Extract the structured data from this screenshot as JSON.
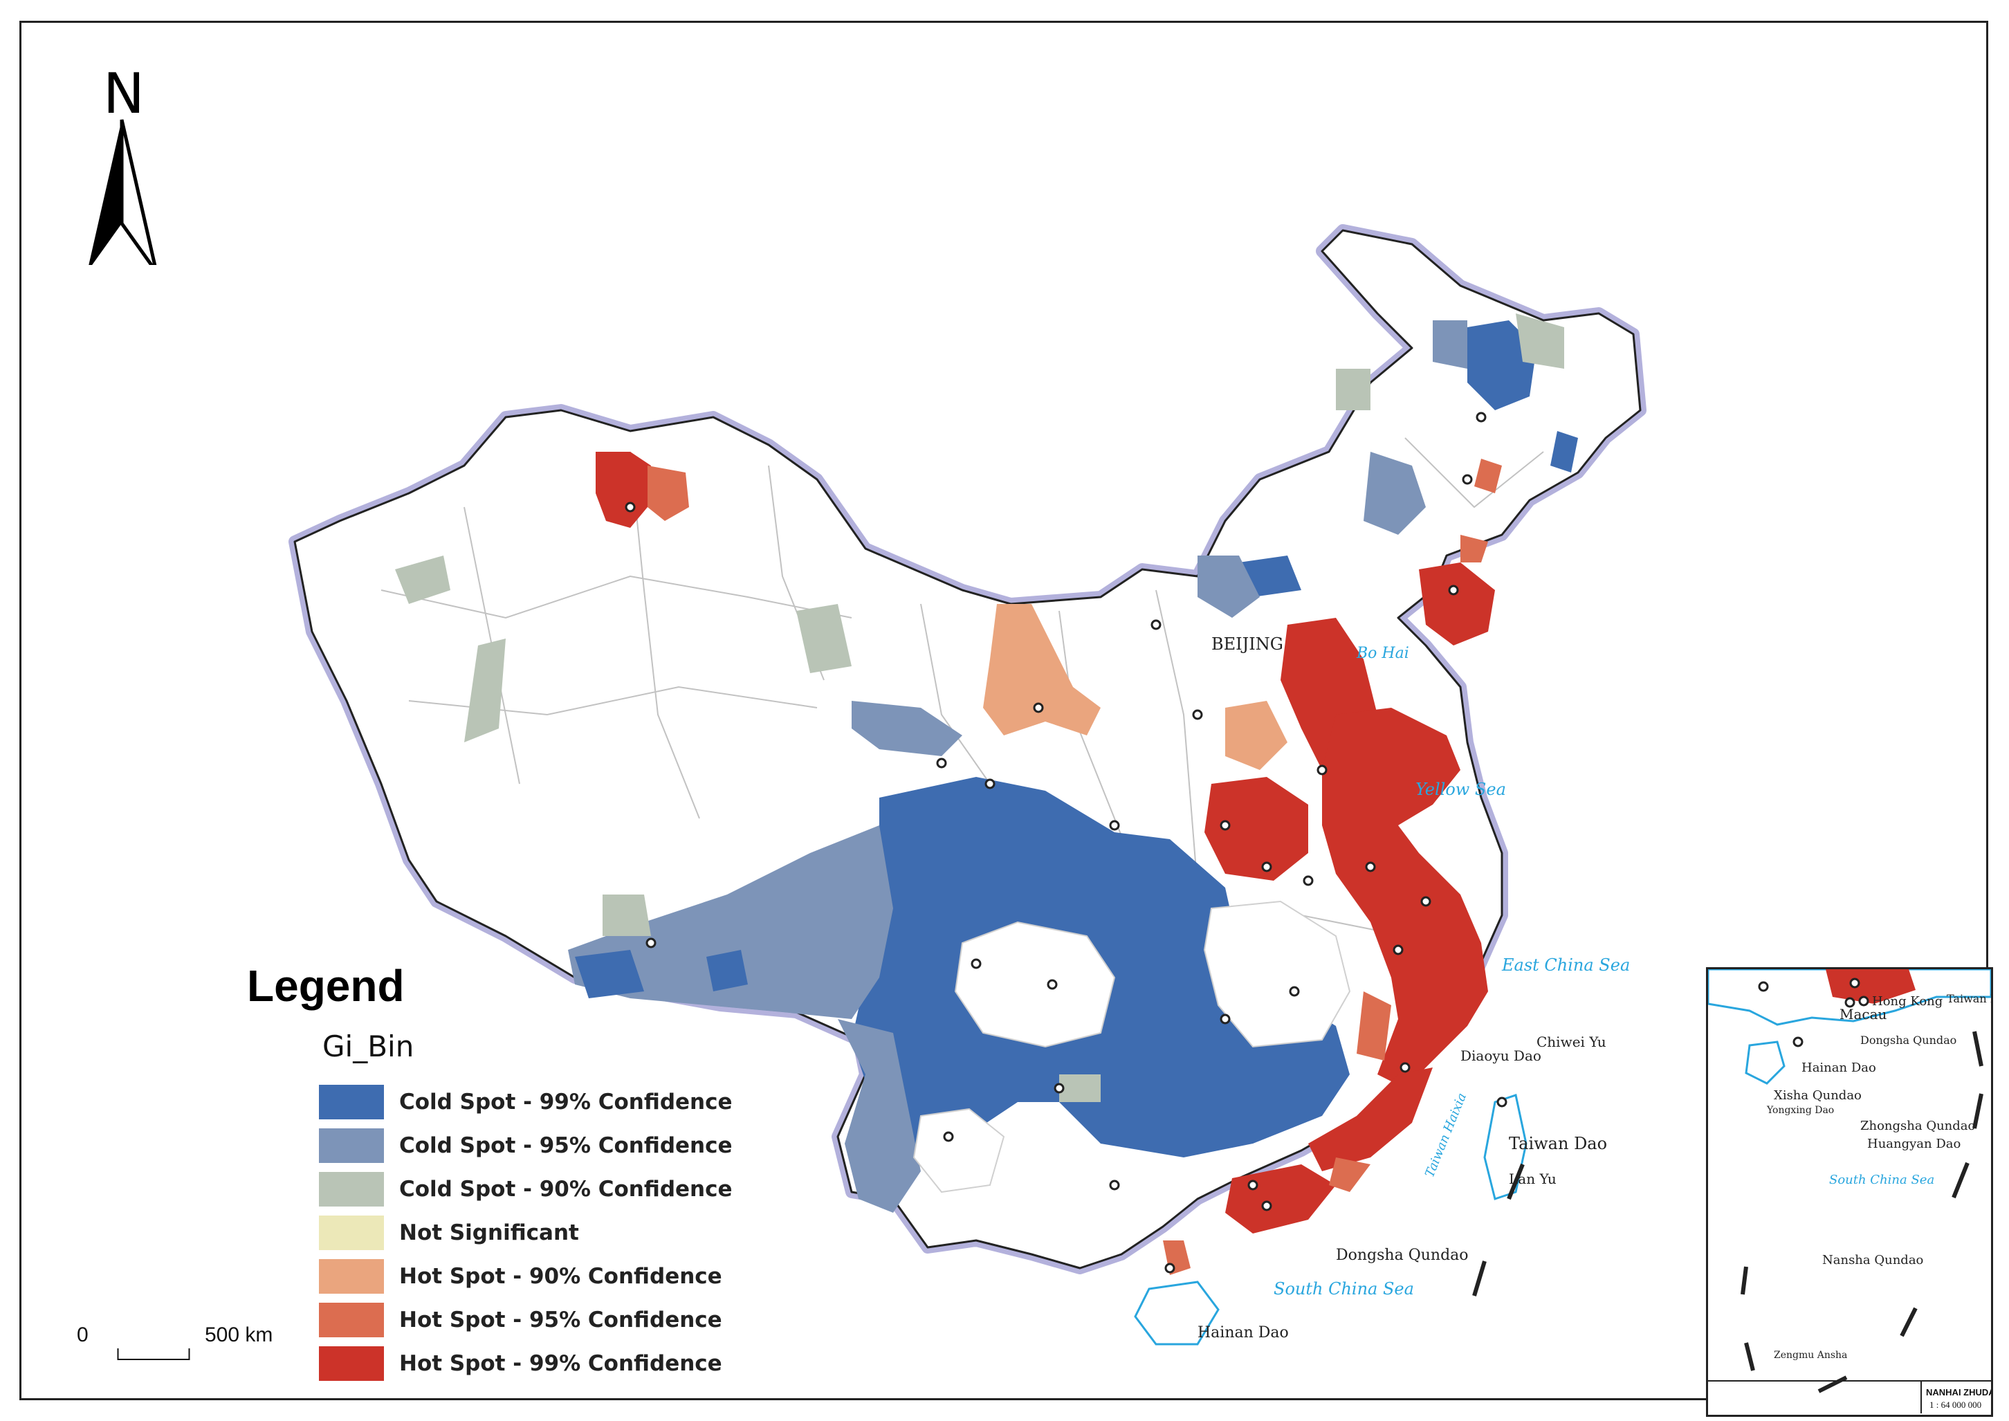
{
  "map": {
    "north_label": "N",
    "legend": {
      "title": "Legend",
      "field": "Gi_Bin",
      "items": [
        {
          "label": "Cold Spot - 99% Confidence",
          "color": "#3e6cb0"
        },
        {
          "label": "Cold Spot - 95% Confidence",
          "color": "#7d94b8"
        },
        {
          "label": "Cold Spot - 90% Confidence",
          "color": "#b9c4b6"
        },
        {
          "label": "Not Significant",
          "color": "#ece8b8"
        },
        {
          "label": "Hot Spot - 90% Confidence",
          "color": "#eaa57e"
        },
        {
          "label": "Hot Spot - 95% Confidence",
          "color": "#dc6d50"
        },
        {
          "label": "Hot Spot - 99% Confidence",
          "color": "#cc3329"
        }
      ]
    },
    "scale": {
      "zero": "0",
      "distance": "500 km"
    },
    "labels": {
      "beijing": "BEIJING",
      "bo_hai": "Bo Hai",
      "yellow_sea": "Yellow Sea",
      "east_china_sea": "East China Sea",
      "diaoyu_dao": "Diaoyu Dao",
      "chiwei_yu": "Chiwei Yu",
      "taiwan_haixia": "Taiwan Haixia",
      "taiwan_dao": "Taiwan Dao",
      "lan_yu": "Lan Yu",
      "dongsha_qundao": "Dongsha Qundao",
      "south_china_sea": "South China Sea",
      "hainan_dao": "Hainan Dao"
    },
    "inset": {
      "labels": {
        "macau": "Macau",
        "hong_kong": "Hong Kong",
        "taiwan_dao": "Taiwan Dao",
        "dongsha_qundao": "Dongsha Qundao",
        "hainan_dao": "Hainan Dao",
        "xisha_qundao": "Xisha Qundao",
        "yongxing_dao": "Yongxing Dao",
        "zhongsha_qundao": "Zhongsha Qundao",
        "huangyan_dao": "Huangyan Dao",
        "south_china_sea": "South China Sea",
        "nansha_qundao": "Nansha Qundao",
        "zengmu_ansha": "Zengmu Ansha"
      },
      "caption_title": "NANHAI ZHUDAO",
      "caption_scale": "1 : 64 000 000"
    },
    "colors": {
      "border_halo": "#b3b1dc",
      "sea_text": "#29a6de",
      "admin_lines": "#bfbfbf"
    }
  }
}
